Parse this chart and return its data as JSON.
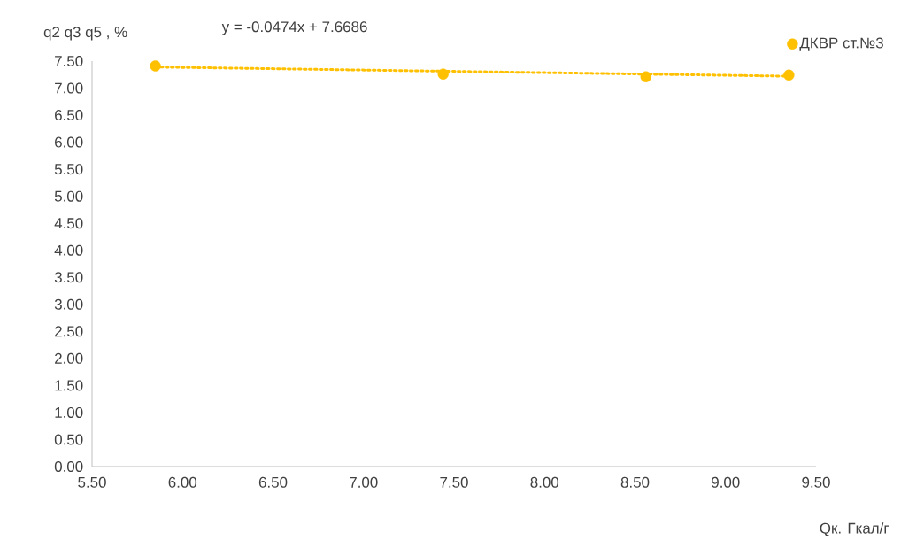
{
  "chart_data": {
    "type": "scatter",
    "xlabel": "Qк. Гкал/г",
    "ylabel": "q2 q3 q5 , %",
    "annotations": [
      "y = -0.0474x + 7.6686"
    ],
    "x": [
      5.85,
      7.44,
      8.56,
      9.35
    ],
    "series": [
      {
        "name": "ДКВР ст.№3",
        "color": "#ffc000",
        "values": [
          7.41,
          7.26,
          7.21,
          7.24
        ],
        "marker": "circle"
      },
      {
        "type": "line",
        "color": "#ffc000",
        "line_style": "dotted",
        "marker": "none",
        "x": [
          5.85,
          9.35
        ],
        "values": [
          7.39,
          7.22
        ]
      }
    ],
    "xlim": [
      5.5,
      9.5
    ],
    "ylim": [
      0,
      7.5
    ],
    "xticks": [
      {
        "value": 5.5,
        "label": "5.50"
      },
      {
        "value": 6,
        "label": "6.00"
      },
      {
        "value": 6.5,
        "label": "6.50"
      },
      {
        "value": 7,
        "label": "7.00"
      },
      {
        "value": 7.5,
        "label": "7.50"
      },
      {
        "value": 8,
        "label": "8.00"
      },
      {
        "value": 8.5,
        "label": "8.50"
      },
      {
        "value": 9,
        "label": "9.00"
      },
      {
        "value": 9.5,
        "label": "9.50"
      }
    ],
    "yticks": [
      {
        "value": 0,
        "label": "0.00"
      },
      {
        "value": 0.5,
        "label": "0.50"
      },
      {
        "value": 1,
        "label": "1.00"
      },
      {
        "value": 1.5,
        "label": "1.50"
      },
      {
        "value": 2,
        "label": "2.00"
      },
      {
        "value": 2.5,
        "label": "2.50"
      },
      {
        "value": 3,
        "label": "3.00"
      },
      {
        "value": 3.5,
        "label": "3.50"
      },
      {
        "value": 4,
        "label": "4.00"
      },
      {
        "value": 4.5,
        "label": "4.50"
      },
      {
        "value": 5,
        "label": "5.00"
      },
      {
        "value": 5.5,
        "label": "5.50"
      },
      {
        "value": 6,
        "label": "6.00"
      },
      {
        "value": 6.5,
        "label": "6.50"
      },
      {
        "value": 7,
        "label": "7.00"
      },
      {
        "value": 7.5,
        "label": "7.50"
      }
    ],
    "grid": false,
    "legend": "top right"
  }
}
